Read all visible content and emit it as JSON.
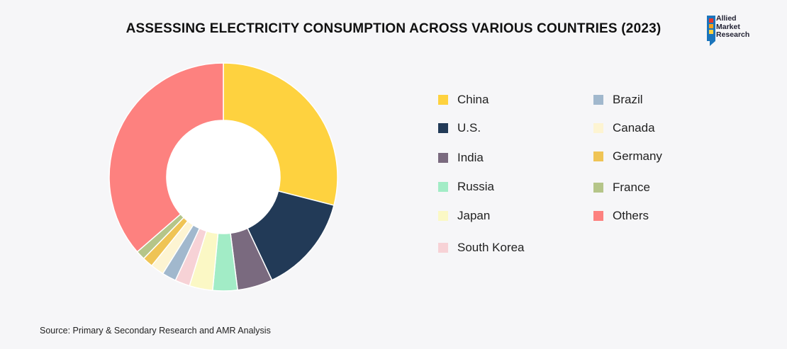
{
  "title": "ASSESSING ELECTRICITY CONSUMPTION ACROSS VARIOUS COUNTRIES (2023)",
  "logo": {
    "line1": "Allied",
    "line2": "Market",
    "line3": "Research"
  },
  "source": "Source: Primary & Secondary Research and AMR Analysis",
  "chart_data": {
    "type": "pie",
    "donut": true,
    "title": "ASSESSING ELECTRICITY CONSUMPTION ACROSS VARIOUS COUNTRIES (2023)",
    "legend_position": "right",
    "slices": [
      {
        "label": "China",
        "value": 29.0,
        "color": "#fed23f"
      },
      {
        "label": "U.S.",
        "value": 14.0,
        "color": "#223a57"
      },
      {
        "label": "India",
        "value": 5.0,
        "color": "#7a6a7f"
      },
      {
        "label": "Russia",
        "value": 3.5,
        "color": "#a2ecc6"
      },
      {
        "label": "Japan",
        "value": 3.3,
        "color": "#fbf8c5"
      },
      {
        "label": "South Korea",
        "value": 2.1,
        "color": "#f7d2d6"
      },
      {
        "label": "Brazil",
        "value": 2.0,
        "color": "#a1b8cd"
      },
      {
        "label": "Canada",
        "value": 1.9,
        "color": "#fdf4d2"
      },
      {
        "label": "Germany",
        "value": 1.5,
        "color": "#efc455"
      },
      {
        "label": "France",
        "value": 1.3,
        "color": "#b5c589"
      },
      {
        "label": "Others",
        "value": 36.4,
        "color": "#fd817f"
      }
    ]
  },
  "legend_order": {
    "left": [
      "China",
      "U.S.",
      "India",
      "Russia",
      "Japan",
      "South Korea"
    ],
    "right": [
      "Brazil",
      "Canada",
      "Germany",
      "France",
      "Others"
    ]
  }
}
